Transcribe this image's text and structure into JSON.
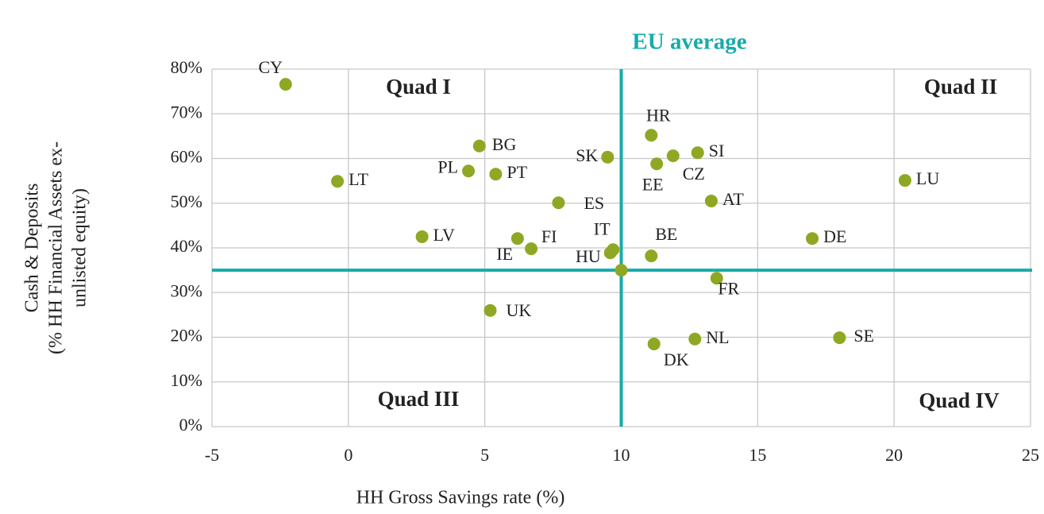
{
  "chart_data": {
    "type": "scatter",
    "x_label": "HH Gross Savings rate (%)",
    "y_label": [
      "Cash & Deposits",
      "(% HH Financial Assets ex-",
      "unlisted equity)"
    ],
    "categories": [
      "CY",
      "LT",
      "LV",
      "BG",
      "PL",
      "PT",
      "UK",
      "FI",
      "IE",
      "ES",
      "SK",
      "IT",
      "HU",
      "HR",
      "EE",
      "CZ",
      "SI",
      "AT",
      "BE",
      "FR",
      "DK",
      "NL",
      "SE",
      "DE",
      "LU"
    ],
    "x": [
      -2.3,
      -0.4,
      2.7,
      4.8,
      4.4,
      5.4,
      5.2,
      6.2,
      6.7,
      7.7,
      9.5,
      9.7,
      9.6,
      11.1,
      11.3,
      11.9,
      12.8,
      13.3,
      11.1,
      13.5,
      11.2,
      12.7,
      18.0,
      17.0,
      20.4
    ],
    "values": [
      76.6,
      54.9,
      42.5,
      62.8,
      57.2,
      56.5,
      26.0,
      42.1,
      39.8,
      50.1,
      60.3,
      39.6,
      38.9,
      65.2,
      58.8,
      60.6,
      61.3,
      50.5,
      38.2,
      33.2,
      18.5,
      19.6,
      19.9,
      42.1,
      55.1
    ],
    "color": "#8ea824",
    "eu_average": {
      "label": "EU average",
      "x": 10,
      "y": 35,
      "color": "#17abab"
    },
    "quadrants": [
      "Quad I",
      "Quad II",
      "Quad III",
      "Quad IV"
    ],
    "xlim": [
      -5,
      25
    ],
    "xticks": [
      -5,
      0,
      5,
      10,
      15,
      20,
      25
    ],
    "ylim": [
      0,
      80
    ],
    "yticks": [
      {
        "value": 0,
        "label": "0%"
      },
      {
        "value": 10,
        "label": "10%"
      },
      {
        "value": 20,
        "label": "20%"
      },
      {
        "value": 30,
        "label": "30%"
      },
      {
        "value": 40,
        "label": "40%"
      },
      {
        "value": 50,
        "label": "50%"
      },
      {
        "value": 60,
        "label": "60%"
      },
      {
        "value": 70,
        "label": "70%"
      },
      {
        "value": 80,
        "label": "80%"
      }
    ],
    "grid": true
  }
}
